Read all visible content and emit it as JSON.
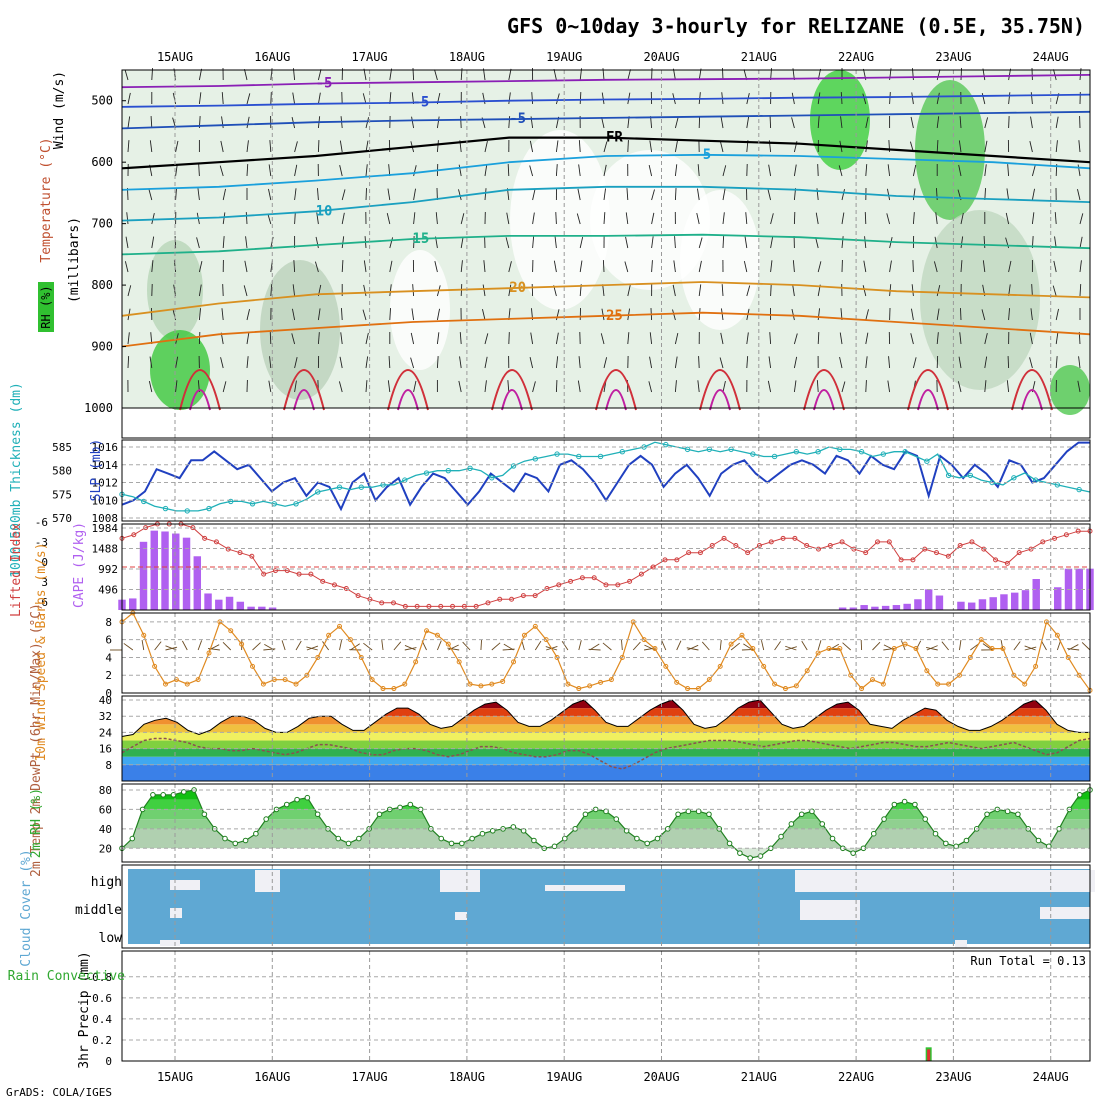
{
  "title": "GFS 0~10day 3-hourly for RELIZANE (0.5E, 35.75N)",
  "footer": "GrADS: COLA/IGES",
  "dates": [
    "15AUG",
    "16AUG",
    "17AUG",
    "18AUG",
    "19AUG",
    "20AUG",
    "21AUG",
    "22AUG",
    "23AUG",
    "24AUG"
  ],
  "colors": {
    "frame": "#000000",
    "grid": "#a0a0a0",
    "cloud": "#5fa8d3",
    "cloud_gap": "#f0f0f5"
  },
  "chart_data": [
    {
      "type": "heatmap",
      "panel": "upper-air",
      "ylabel_lines": [
        "Wind (m/s)",
        "Temperature (°C)",
        "RH (%)",
        "(millibars)"
      ],
      "pressure_ticks": [
        500,
        600,
        700,
        800,
        900,
        1000
      ],
      "ylim": [
        450,
        1000
      ],
      "isotherms": [
        {
          "label": "-5",
          "p": [
            478,
            476,
            472,
            470,
            468,
            466,
            465,
            464,
            462,
            460,
            458
          ]
        },
        {
          "label": "-5",
          "p": [
            510,
            508,
            505,
            503,
            500,
            498,
            497,
            495,
            494,
            492,
            490
          ]
        },
        {
          "label": "-5",
          "p": [
            545,
            540,
            535,
            532,
            530,
            528,
            526,
            524,
            522,
            520,
            518
          ]
        },
        {
          "label": "FR",
          "p": [
            610,
            600,
            590,
            575,
            560,
            560,
            565,
            570,
            580,
            590,
            600
          ]
        },
        {
          "label": "5",
          "p": [
            645,
            640,
            630,
            618,
            600,
            590,
            588,
            590,
            595,
            600,
            610
          ]
        },
        {
          "label": "10",
          "p": [
            695,
            690,
            680,
            665,
            645,
            640,
            640,
            645,
            655,
            660,
            665
          ]
        },
        {
          "label": "15",
          "p": [
            750,
            745,
            735,
            725,
            720,
            720,
            718,
            722,
            730,
            735,
            740
          ]
        },
        {
          "label": "20",
          "p": [
            850,
            830,
            815,
            810,
            805,
            800,
            795,
            800,
            810,
            815,
            820
          ]
        },
        {
          "label": "25",
          "p": [
            900,
            880,
            870,
            860,
            855,
            850,
            845,
            850,
            860,
            870,
            880
          ]
        }
      ],
      "isotherm_colors": [
        "#8a1fb5",
        "#2a4fd0",
        "#1f4fb8",
        "#000000",
        "#1aa0dc",
        "#1aa0c0",
        "#1fb08a",
        "#d89020",
        "#e07010"
      ]
    },
    {
      "type": "line",
      "panel": "slp-thickness",
      "ylabel_left": "1000-500mb Thickness (dm)",
      "ylabel_right": "SLP (mb)",
      "left_ticks": [
        570,
        575,
        580,
        585
      ],
      "right_ticks": [
        1008,
        1010,
        1012,
        1014,
        1016
      ],
      "series": [
        {
          "name": "SLP (mb)",
          "color": "#2040c0",
          "axis": "right",
          "values": [
            1009.5,
            1010,
            1011,
            1013.5,
            1013,
            1012.5,
            1014.5,
            1014.5,
            1015.5,
            1014.5,
            1013.5,
            1014,
            1012.5,
            1011,
            1012,
            1012.5,
            1010.5,
            1012,
            1011.5,
            1009,
            1012,
            1013,
            1010,
            1011.5,
            1012.5,
            1009.5,
            1011.5,
            1013,
            1012.5,
            1011,
            1009.5,
            1011,
            1013,
            1012,
            1011,
            1013,
            1012.5,
            1011,
            1014,
            1014.5,
            1013.5,
            1012,
            1010,
            1012,
            1014,
            1015,
            1014,
            1011.5,
            1013,
            1014,
            1012.5,
            1010.5,
            1013,
            1014,
            1014.5,
            1013,
            1012,
            1013,
            1014,
            1014.5,
            1014,
            1013,
            1015,
            1014.5,
            1013,
            1015,
            1014,
            1013.5,
            1015.5,
            1015,
            1010.5,
            1015,
            1014,
            1012.5,
            1014,
            1013,
            1011.5,
            1014.5,
            1014,
            1012,
            1012.5,
            1014,
            1015.5,
            1016.5,
            1016.5
          ]
        },
        {
          "name": "1000-500mb Thickness (dm)",
          "color": "#20b0b8",
          "axis": "left",
          "values": [
            575,
            574.5,
            573.5,
            572.5,
            572,
            571.5,
            571.5,
            571.5,
            572,
            573,
            573.5,
            573.5,
            573,
            573.5,
            573,
            572.5,
            573,
            574,
            575.5,
            576,
            576.5,
            576,
            576.5,
            576.5,
            577,
            577,
            578,
            579,
            579.5,
            580,
            580,
            580,
            580.5,
            580,
            578.5,
            579,
            581,
            582,
            582.5,
            583,
            583.5,
            583.5,
            583,
            583,
            583,
            583.5,
            584,
            584.5,
            585,
            586,
            585.5,
            585,
            584.5,
            584,
            584.5,
            584,
            584.5,
            584,
            583.5,
            583,
            583,
            583.5,
            584,
            583.5,
            584,
            585,
            584.5,
            584.5,
            584,
            583,
            583.5,
            584,
            584,
            583,
            582,
            583.5,
            579,
            578.5,
            579,
            578,
            577.5,
            577,
            578.5,
            579.5,
            578,
            577.5,
            577,
            576.5,
            576,
            575.5
          ]
        }
      ]
    },
    {
      "type": "bar",
      "panel": "cape-li",
      "ylabel_left": "Lifted Index",
      "ylabel_right": "CAPE (J/kg)",
      "left_ticks": [
        "6",
        "3",
        "0",
        "-3",
        "-6"
      ],
      "right_ticks": [
        496,
        992,
        1488,
        1984
      ],
      "cape_values": [
        250,
        280,
        1650,
        1920,
        1900,
        1850,
        1750,
        1300,
        400,
        250,
        320,
        200,
        80,
        80,
        60,
        0,
        0,
        0,
        0,
        0,
        0,
        0,
        0,
        0,
        0,
        0,
        0,
        0,
        0,
        0,
        0,
        0,
        0,
        0,
        0,
        0,
        0,
        0,
        0,
        0,
        0,
        0,
        0,
        0,
        0,
        0,
        0,
        0,
        0,
        0,
        0,
        0,
        0,
        0,
        0,
        0,
        0,
        0,
        0,
        0,
        0,
        0,
        0,
        0,
        0,
        0,
        0,
        60,
        60,
        120,
        80,
        100,
        120,
        150,
        260,
        500,
        350,
        0,
        200,
        180,
        260,
        310,
        380,
        420,
        480,
        750,
        0,
        550,
        1000,
        1000,
        1000
      ],
      "li_values": [
        -4,
        -4.5,
        -5.5,
        -6,
        -6,
        -6,
        -5.5,
        -4,
        -3.5,
        -2.5,
        -2,
        -1.5,
        1,
        0.5,
        0.5,
        1,
        1,
        2,
        2.5,
        3,
        4,
        4.5,
        5,
        5,
        5.5,
        5.5,
        5.5,
        5.5,
        5.5,
        5.5,
        5.5,
        5,
        4.5,
        4.5,
        4,
        4,
        3,
        2.5,
        2,
        1.5,
        1.5,
        2.5,
        2.5,
        2,
        1,
        0,
        -1,
        -1,
        -2,
        -2,
        -3,
        -4,
        -3,
        -2,
        -3,
        -3.5,
        -4,
        -4,
        -3,
        -2.5,
        -3,
        -3.5,
        -2.5,
        -2,
        -3.5,
        -3.5,
        -1,
        -1,
        -2.5,
        -2,
        -1.5,
        -3,
        -3.5,
        -2.5,
        -1,
        -0.5,
        -2,
        -2.5,
        -3.5,
        -4,
        -4.5,
        -5,
        -5
      ]
    },
    {
      "type": "line",
      "panel": "wind10m",
      "ylabel": "10m Wind Speed & Barbs (m/s)",
      "y_ticks": [
        0,
        2,
        4,
        6,
        8
      ],
      "series": [
        {
          "name": "10m Wind Speed",
          "color": "#e08a20",
          "values": [
            8,
            9,
            6.5,
            3,
            1,
            1.5,
            1,
            1.5,
            4.5,
            8,
            7,
            5.5,
            3,
            1,
            1.5,
            1.5,
            1,
            2,
            4,
            6.5,
            7.5,
            6,
            4,
            1.5,
            0.5,
            0.5,
            1,
            3.5,
            7,
            6.5,
            5.5,
            3.5,
            1,
            0.8,
            1,
            1.3,
            3.5,
            6.5,
            7.5,
            6,
            4,
            1,
            0.5,
            0.8,
            1.2,
            1.5,
            4,
            8,
            6,
            5,
            3,
            1.2,
            0.5,
            0.5,
            1.5,
            3,
            5.5,
            6.5,
            5,
            3,
            1,
            0.5,
            0.8,
            2.5,
            4.5,
            5,
            5,
            2,
            0.5,
            1.5,
            1,
            5,
            5.5,
            5,
            2.5,
            1,
            1,
            2,
            4,
            6,
            5,
            5,
            2,
            1,
            3,
            8,
            6.5,
            4,
            2,
            0.3
          ]
        }
      ]
    },
    {
      "type": "area",
      "panel": "temp2m",
      "ylabel": "2m Temp 2m DewPt (6hr Min/Max) (°C)",
      "y_ticks": [
        8,
        16,
        24,
        32,
        40
      ],
      "series": [
        {
          "name": "2m Temp",
          "color": "#000000",
          "values": [
            22,
            23,
            28,
            30,
            31,
            29,
            25,
            23,
            25,
            29,
            32,
            32,
            30,
            26,
            24,
            24,
            27,
            31,
            32,
            32,
            28,
            25,
            25,
            29,
            33,
            36,
            36,
            33,
            28,
            26,
            27,
            31,
            35,
            38,
            39,
            35,
            29,
            27,
            27,
            30,
            34,
            38,
            40,
            35,
            29,
            27,
            27,
            31,
            35,
            38,
            40,
            35,
            28,
            26,
            27,
            31,
            36,
            39,
            40,
            34,
            28,
            26,
            27,
            31,
            35,
            38,
            39,
            35,
            28,
            27,
            26,
            30,
            33,
            36,
            35,
            30,
            27,
            25,
            25,
            27,
            30,
            34,
            38,
            40,
            35,
            28,
            25,
            24,
            24
          ]
        },
        {
          "name": "2m DewPt",
          "color": "#8a5050",
          "values": [
            14,
            17,
            20,
            21,
            21,
            20,
            19,
            17,
            16,
            16,
            15,
            15,
            16,
            15,
            14,
            13,
            14,
            16,
            18,
            18,
            17,
            16,
            14,
            13,
            13,
            15,
            16,
            16,
            15,
            13,
            12,
            13,
            15,
            17,
            17,
            16,
            14,
            13,
            12,
            12,
            13,
            15,
            15,
            13,
            10,
            7,
            6,
            8,
            11,
            14,
            16,
            17,
            18,
            19,
            20,
            20,
            20,
            19,
            18,
            17,
            18,
            19,
            20,
            20,
            19,
            18,
            17,
            16,
            17,
            18,
            19,
            19,
            18,
            17,
            17,
            18,
            19,
            18,
            17,
            16,
            17,
            18,
            19,
            17,
            15,
            13,
            14,
            17,
            20,
            21
          ]
        }
      ]
    },
    {
      "type": "area",
      "panel": "rh2m",
      "ylabel": "2m RH (%)",
      "y_ticks": [
        20,
        40,
        60,
        80
      ],
      "series": [
        {
          "name": "2m RH",
          "color": "#30a830",
          "values": [
            20,
            30,
            60,
            75,
            75,
            75,
            78,
            80,
            55,
            40,
            30,
            25,
            28,
            35,
            50,
            60,
            65,
            70,
            72,
            55,
            40,
            30,
            25,
            30,
            40,
            55,
            60,
            62,
            65,
            60,
            40,
            30,
            25,
            25,
            30,
            35,
            38,
            40,
            42,
            38,
            28,
            20,
            22,
            30,
            40,
            55,
            60,
            58,
            50,
            38,
            30,
            25,
            30,
            40,
            55,
            58,
            58,
            55,
            40,
            25,
            15,
            10,
            12,
            20,
            32,
            45,
            55,
            58,
            45,
            30,
            20,
            15,
            20,
            35,
            50,
            65,
            68,
            65,
            50,
            35,
            25,
            22,
            28,
            40,
            55,
            60,
            58,
            55,
            40,
            28,
            22,
            40,
            60,
            75,
            80
          ]
        }
      ]
    },
    {
      "type": "heatmap",
      "panel": "cloud",
      "ylabel": "Cloud Cover (%)",
      "layers": [
        "high",
        "middle",
        "low"
      ]
    },
    {
      "type": "bar",
      "panel": "precip",
      "ylabel": "3hr Precip (mm)",
      "ylabel_left": "Total / Rain Convective",
      "y_ticks": [
        0,
        0.2,
        0.4,
        0.6,
        0.8
      ],
      "annotation": "Run Total = 0.13",
      "values": [
        {
          "i": 75,
          "total": 0.13,
          "convective": 0.11
        }
      ]
    }
  ]
}
